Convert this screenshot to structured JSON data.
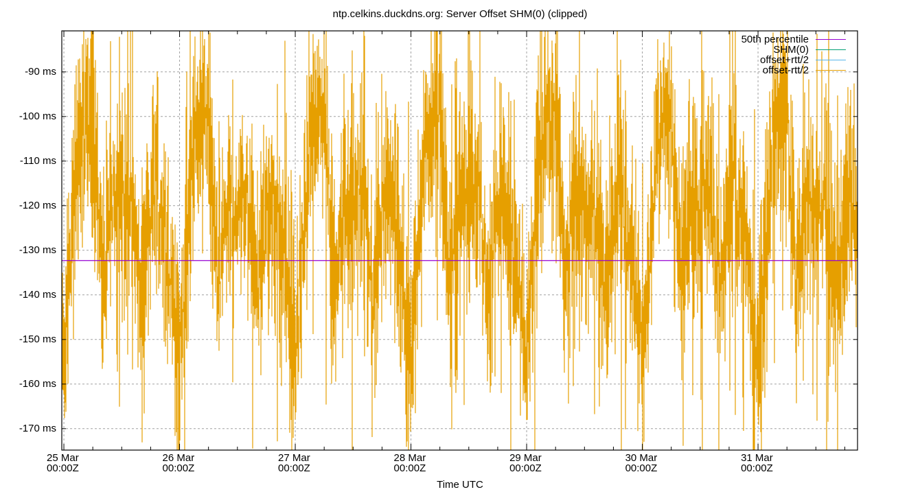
{
  "chart_data": {
    "type": "line",
    "title": "ntp.celkins.duckdns.org: Server Offset SHM(0) (clipped)",
    "xlabel": "Time UTC",
    "ylabel": "",
    "ylim": [
      -174.8,
      -80.8
    ],
    "yticks": [
      {
        "value": -90,
        "label": "-90 ms"
      },
      {
        "value": -100,
        "label": "-100 ms"
      },
      {
        "value": -110,
        "label": "-110 ms"
      },
      {
        "value": -120,
        "label": "-120 ms"
      },
      {
        "value": -130,
        "label": "-130 ms"
      },
      {
        "value": -140,
        "label": "-140 ms"
      },
      {
        "value": -150,
        "label": "-150 ms"
      },
      {
        "value": -160,
        "label": "-160 ms"
      },
      {
        "value": -170,
        "label": "-170 ms"
      }
    ],
    "xticks": [
      {
        "day": 0,
        "label1": "25 Mar",
        "label2": "00:00Z"
      },
      {
        "day": 1,
        "label1": "26 Mar",
        "label2": "00:00Z"
      },
      {
        "day": 2,
        "label1": "27 Mar",
        "label2": "00:00Z"
      },
      {
        "day": 3,
        "label1": "28 Mar",
        "label2": "00:00Z"
      },
      {
        "day": 4,
        "label1": "29 Mar",
        "label2": "00:00Z"
      },
      {
        "day": 5,
        "label1": "30 Mar",
        "label2": "00:00Z"
      },
      {
        "day": 6,
        "label1": "31 Mar",
        "label2": "00:00Z"
      }
    ],
    "xlim_days": [
      -0.018,
      6.86
    ],
    "minor_ticks_per_day": 4,
    "grid": true,
    "legend_position": "top-right",
    "series": [
      {
        "name": "50th percentile",
        "color": "#9400d3",
        "type": "hline",
        "value": -132.3
      },
      {
        "name": "SHM(0)",
        "color": "#009e73",
        "type": "line"
      },
      {
        "name": "offset+rtt/2",
        "color": "#56b4e9",
        "type": "line"
      },
      {
        "name": "offset-rtt/2",
        "color": "#e69f00",
        "type": "impulse",
        "pattern": "daily oscillation ~ -170 ms near 00:00Z to ~ -85 ms around 03:00-06:00Z, with noise; values clipped to plot range",
        "daily_profile": [
          {
            "hour": 0,
            "value": -155
          },
          {
            "hour": 3,
            "value": -105
          },
          {
            "hour": 6,
            "value": -100
          },
          {
            "hour": 8,
            "value": -138
          },
          {
            "hour": 10,
            "value": -120
          },
          {
            "hour": 14,
            "value": -118
          },
          {
            "hour": 16,
            "value": -140
          },
          {
            "hour": 19,
            "value": -115
          },
          {
            "hour": 22,
            "value": -135
          },
          {
            "hour": 24,
            "value": -155
          }
        ]
      }
    ]
  },
  "legend": {
    "items": [
      {
        "label": "50th percentile",
        "color": "#9400d3"
      },
      {
        "label": "SHM(0)",
        "color": "#009e73"
      },
      {
        "label": "offset+rtt/2",
        "color": "#56b4e9"
      },
      {
        "label": "offset-rtt/2",
        "color": "#e69f00"
      }
    ]
  }
}
